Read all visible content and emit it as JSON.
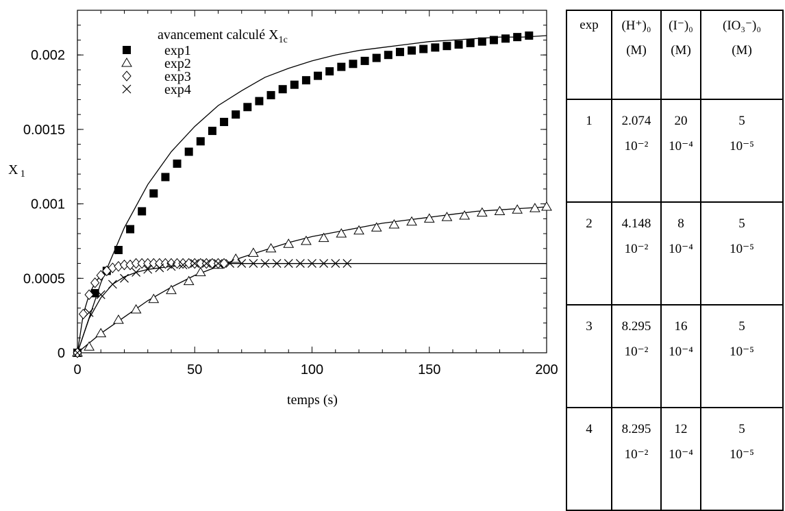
{
  "chart_data": {
    "type": "scatter",
    "xlabel": "temps (s)",
    "ylabel": "X",
    "ylabel_sub": "1",
    "xlim": [
      0,
      200
    ],
    "ylim": [
      0,
      0.0023
    ],
    "xticks": [
      0,
      50,
      100,
      150,
      200
    ],
    "xtick_labels": [
      "0",
      "50",
      "100",
      "150",
      "200"
    ],
    "yticks": [
      0,
      0.0005,
      0.001,
      0.0015,
      0.002
    ],
    "ytick_labels": [
      "0",
      "0.0005",
      "0.001",
      "0.0015",
      "0.002"
    ],
    "legend_title": "avancement calculé X",
    "legend_title_sub": "1c",
    "legend_position": "top-left",
    "series": [
      {
        "name": "exp1",
        "marker": "filled-square",
        "x": [
          0,
          7.5,
          12.5,
          17.5,
          22.5,
          27.5,
          32.5,
          37.5,
          42.5,
          47.5,
          52.5,
          57.5,
          62.5,
          67.5,
          72.5,
          77.5,
          82.5,
          87.5,
          92.5,
          97.5,
          102.5,
          107.5,
          112.5,
          117.5,
          122.5,
          127.5,
          132.5,
          137.5,
          142.5,
          147.5,
          152.5,
          157.5,
          162.5,
          167.5,
          172.5,
          177.5,
          182.5,
          187.5,
          192.5
        ],
        "y": [
          0,
          0.0004,
          0.00055,
          0.00069,
          0.00083,
          0.00095,
          0.00107,
          0.00118,
          0.00127,
          0.00135,
          0.00142,
          0.00149,
          0.00155,
          0.0016,
          0.00165,
          0.00169,
          0.00173,
          0.00177,
          0.0018,
          0.00183,
          0.00186,
          0.00189,
          0.00192,
          0.00194,
          0.00196,
          0.00198,
          0.002,
          0.00202,
          0.00203,
          0.00204,
          0.00205,
          0.00206,
          0.00207,
          0.00208,
          0.00209,
          0.0021,
          0.00211,
          0.00212,
          0.00213
        ]
      },
      {
        "name": "exp2",
        "marker": "open-triangle",
        "x": [
          0,
          5,
          10,
          17.5,
          25,
          32.5,
          40,
          47.5,
          52.5,
          60,
          67.5,
          75,
          82.5,
          90,
          97.5,
          105,
          112.5,
          120,
          127.5,
          135,
          142.5,
          150,
          157.5,
          165,
          172.5,
          180,
          187.5,
          195,
          200
        ],
        "y": [
          0,
          4e-05,
          0.00013,
          0.00022,
          0.00029,
          0.00036,
          0.00042,
          0.00048,
          0.00054,
          0.00059,
          0.00063,
          0.00067,
          0.0007,
          0.00073,
          0.00075,
          0.00077,
          0.0008,
          0.00082,
          0.00084,
          0.00086,
          0.00088,
          0.0009,
          0.00091,
          0.00092,
          0.00094,
          0.00095,
          0.00096,
          0.00097,
          0.00098
        ]
      },
      {
        "name": "exp3",
        "marker": "open-diamond",
        "x": [
          0,
          2.5,
          5,
          7.5,
          10,
          12.5,
          15,
          17.5,
          20,
          22.5,
          25,
          27.5,
          30,
          32.5,
          35,
          37.5,
          40,
          42.5,
          45,
          47.5,
          50,
          52.5,
          55,
          57.5,
          60,
          62.5
        ],
        "y": [
          0,
          0.00026,
          0.00039,
          0.00047,
          0.00052,
          0.00055,
          0.00057,
          0.00058,
          0.00059,
          0.00059,
          0.0006,
          0.0006,
          0.0006,
          0.0006,
          0.0006,
          0.0006,
          0.0006,
          0.0006,
          0.0006,
          0.0006,
          0.0006,
          0.0006,
          0.0006,
          0.0006,
          0.0006,
          0.0006
        ]
      },
      {
        "name": "exp4",
        "marker": "cross",
        "x": [
          0,
          5,
          10,
          15,
          20,
          25,
          30,
          35,
          40,
          45,
          50,
          55,
          60,
          65,
          70,
          75,
          80,
          85,
          90,
          95,
          100,
          105,
          110,
          115
        ],
        "y": [
          0,
          0.00027,
          0.00039,
          0.00046,
          0.0005,
          0.00054,
          0.00056,
          0.00057,
          0.00058,
          0.00059,
          0.0006,
          0.0006,
          0.0006,
          0.0006,
          0.0006,
          0.0006,
          0.0006,
          0.0006,
          0.0006,
          0.0006,
          0.0006,
          0.0006,
          0.0006,
          0.0006
        ]
      }
    ],
    "fit_curves": [
      {
        "x": [
          0,
          10,
          20,
          30,
          40,
          50,
          60,
          70,
          80,
          90,
          100,
          110,
          120,
          130,
          140,
          150,
          160,
          170,
          180,
          190,
          200
        ],
        "y": [
          0,
          0.00047,
          0.00084,
          0.00113,
          0.00135,
          0.00152,
          0.00166,
          0.00176,
          0.00185,
          0.00191,
          0.00196,
          0.002,
          0.00203,
          0.00205,
          0.00207,
          0.00209,
          0.0021,
          0.00211,
          0.00212,
          0.00212,
          0.00213
        ]
      },
      {
        "x": [
          0,
          10,
          20,
          30,
          40,
          50,
          60,
          70,
          80,
          90,
          100,
          110,
          120,
          130,
          140,
          150,
          160,
          170,
          180,
          190,
          200
        ],
        "y": [
          0,
          0.00013,
          0.00024,
          0.00035,
          0.00044,
          0.00052,
          0.00058,
          0.00064,
          0.00069,
          0.00074,
          0.00078,
          0.00081,
          0.00084,
          0.00087,
          0.00089,
          0.00091,
          0.00093,
          0.00095,
          0.00096,
          0.00097,
          0.00098
        ]
      },
      {
        "x": [
          0,
          2.5,
          5,
          7.5,
          10,
          12.5,
          15,
          17.5,
          20,
          25,
          30,
          35,
          40,
          50,
          60,
          80,
          100,
          150,
          200
        ],
        "y": [
          0,
          0.00026,
          0.00039,
          0.00047,
          0.00052,
          0.00055,
          0.00057,
          0.00058,
          0.00059,
          0.0006,
          0.0006,
          0.0006,
          0.0006,
          0.0006,
          0.0006,
          0.0006,
          0.0006,
          0.0006,
          0.0006
        ]
      },
      {
        "x": [
          0,
          5,
          10,
          15,
          20,
          25,
          30,
          40,
          50,
          60,
          80,
          100,
          150,
          200
        ],
        "y": [
          0,
          0.00023,
          0.00037,
          0.00046,
          0.00051,
          0.00054,
          0.00056,
          0.00058,
          0.00059,
          0.0006,
          0.0006,
          0.0006,
          0.0006,
          0.0006
        ]
      }
    ]
  },
  "table": {
    "headers": [
      {
        "main": "exp",
        "unit": ""
      },
      {
        "main": "(H⁺)₀",
        "unit": "(M)"
      },
      {
        "main": "(I⁻)₀",
        "unit": "(M)"
      },
      {
        "main": "(IO₃⁻)₀",
        "unit": "(M)"
      }
    ],
    "rows": [
      [
        {
          "main": "1",
          "exp": ""
        },
        {
          "main": "2.074",
          "exp": "10⁻²"
        },
        {
          "main": "20",
          "exp": "10⁻⁴"
        },
        {
          "main": "5",
          "exp": "10⁻⁵"
        }
      ],
      [
        {
          "main": "2",
          "exp": ""
        },
        {
          "main": "4.148",
          "exp": "10⁻²"
        },
        {
          "main": "8",
          "exp": "10⁻⁴"
        },
        {
          "main": "5",
          "exp": "10⁻⁵"
        }
      ],
      [
        {
          "main": "3",
          "exp": ""
        },
        {
          "main": "8.295",
          "exp": "10⁻²"
        },
        {
          "main": "16",
          "exp": "10⁻⁴"
        },
        {
          "main": "5",
          "exp": "10⁻⁵"
        }
      ],
      [
        {
          "main": "4",
          "exp": ""
        },
        {
          "main": "8.295",
          "exp": "10⁻²"
        },
        {
          "main": "12",
          "exp": "10⁻⁴"
        },
        {
          "main": "5",
          "exp": "10⁻⁵"
        }
      ]
    ]
  }
}
